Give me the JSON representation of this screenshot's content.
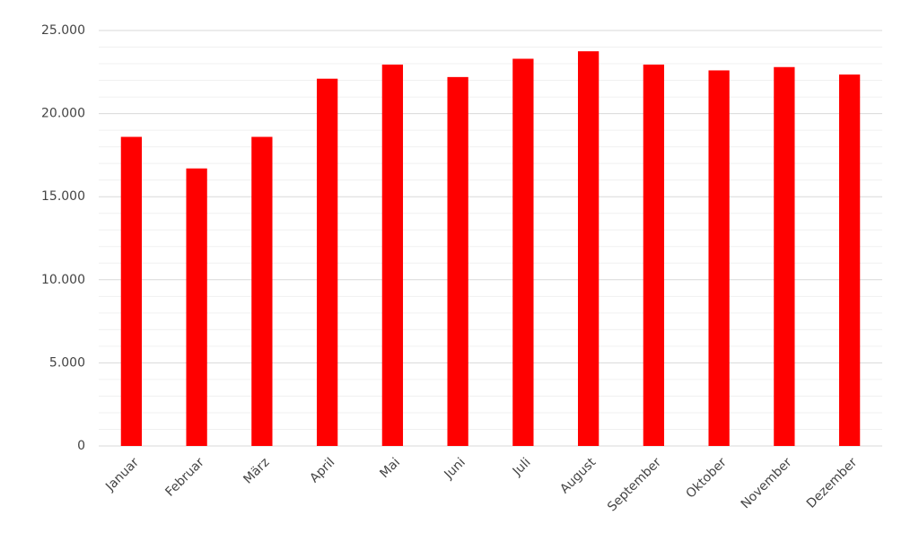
{
  "chart_data": {
    "type": "bar",
    "categories": [
      "Januar",
      "Februar",
      "März",
      "April",
      "Mai",
      "Juni",
      "Juli",
      "August",
      "September",
      "Oktober",
      "November",
      "Dezember"
    ],
    "values": [
      18600,
      16700,
      18600,
      22100,
      22950,
      22200,
      23300,
      23750,
      22950,
      22600,
      22800,
      22350
    ],
    "color": "#ff0000",
    "ylim": [
      0,
      25000
    ],
    "yticks": [
      0,
      {
        "value": 5000,
        "label": "5.000"
      },
      {
        "value": 10000,
        "label": "10.000"
      },
      {
        "value": 15000,
        "label": "15.000"
      },
      {
        "value": 20000,
        "label": "20.000"
      },
      {
        "value": 25000,
        "label": "25.000"
      }
    ],
    "minor_yticks": [
      1000,
      2000,
      3000,
      4000,
      6000,
      7000,
      8000,
      9000,
      11000,
      12000,
      13000,
      14000,
      16000,
      17000,
      18000,
      19000,
      21000,
      22000,
      23000,
      24000
    ],
    "grid": true
  }
}
